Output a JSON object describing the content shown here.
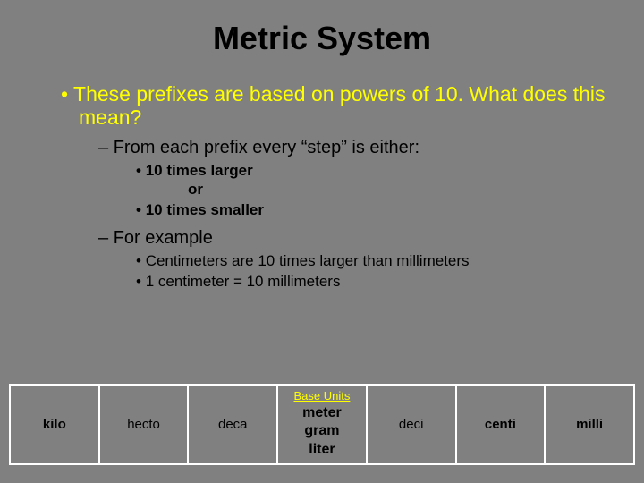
{
  "title": "Metric System",
  "bullets": {
    "l1_1": "These prefixes are based on powers of 10. What does this mean?",
    "l2_1": "From each prefix every “step” is either:",
    "l3_1": "10 times larger",
    "or": "or",
    "l3_2": "10 times smaller",
    "l2_2": "For example",
    "l3_3": "Centimeters are 10 times larger than millimeters",
    "l3_4": "1 centimeter = 10 millimeters"
  },
  "table": {
    "cells": [
      "kilo",
      "hecto",
      "deca",
      "deci",
      "centi",
      "milli"
    ],
    "base_header": "Base Units",
    "base_units": [
      "meter",
      "gram",
      "liter"
    ]
  },
  "colors": {
    "background": "#808080",
    "accent": "#ffff00",
    "text": "#000000",
    "border": "#ffffff"
  }
}
